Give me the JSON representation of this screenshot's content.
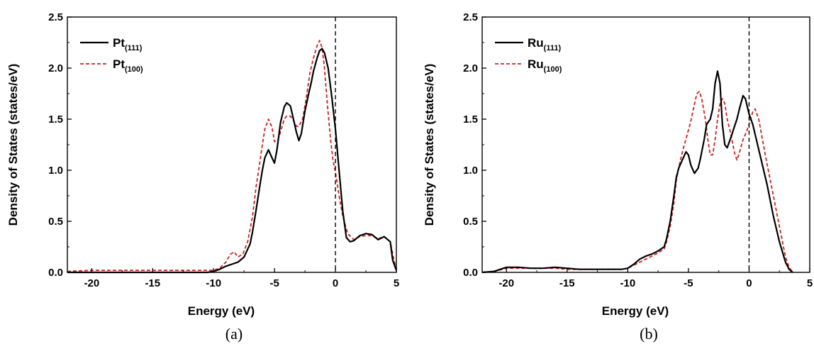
{
  "colors": {
    "series_111": "#000000",
    "series_100": "#cc2222",
    "fermi_line": "#000000"
  },
  "chart_data": [
    {
      "panel_label": "(a)",
      "type": "line",
      "xlabel": "Energy (eV)",
      "ylabel": "Density of States (states/eV)",
      "xlim": [
        -22,
        5
      ],
      "ylim": [
        0,
        2.5
      ],
      "xticks": [
        "-20",
        "-15",
        "-10",
        "-5",
        "0",
        "5"
      ],
      "yticks": [
        "0.0",
        "0.5",
        "1.0",
        "1.5",
        "2.0",
        "2.5"
      ],
      "fermi_level": 0,
      "legend_position": "top-left",
      "series": [
        {
          "name": "Pt",
          "name_sub": "(111)",
          "style": "solid",
          "x": [
            -22,
            -20,
            -15,
            -10.5,
            -10,
            -9.5,
            -9,
            -8.5,
            -8,
            -7.5,
            -7,
            -6.8,
            -6.5,
            -6.2,
            -6,
            -5.8,
            -5.5,
            -5.2,
            -5,
            -4.8,
            -4.5,
            -4.2,
            -4,
            -3.7,
            -3.5,
            -3.2,
            -3,
            -2.8,
            -2.5,
            -2.2,
            -2,
            -1.8,
            -1.5,
            -1.3,
            -1.1,
            -0.9,
            -0.6,
            -0.3,
            0,
            0.3,
            0.6,
            0.9,
            1.2,
            1.5,
            2,
            2.5,
            3,
            3.5,
            4,
            4.5,
            4.7,
            5
          ],
          "values": [
            0.0,
            0.0,
            0.0,
            0.0,
            0.01,
            0.03,
            0.06,
            0.08,
            0.1,
            0.15,
            0.28,
            0.4,
            0.62,
            0.85,
            1.0,
            1.12,
            1.2,
            1.12,
            1.07,
            1.2,
            1.47,
            1.62,
            1.66,
            1.63,
            1.53,
            1.37,
            1.29,
            1.36,
            1.58,
            1.75,
            1.85,
            1.97,
            2.1,
            2.17,
            2.19,
            2.15,
            2.0,
            1.72,
            1.4,
            1.0,
            0.6,
            0.34,
            0.3,
            0.31,
            0.36,
            0.38,
            0.37,
            0.32,
            0.35,
            0.3,
            0.12,
            0.02
          ]
        },
        {
          "name": "Pt",
          "name_sub": "(100)",
          "style": "dashed",
          "x": [
            -22,
            -20,
            -15,
            -10,
            -9.5,
            -9,
            -8.6,
            -8.3,
            -8,
            -7.6,
            -7.2,
            -6.8,
            -6.5,
            -6.2,
            -6,
            -5.8,
            -5.5,
            -5.2,
            -5,
            -4.7,
            -4.4,
            -4.2,
            -4,
            -3.7,
            -3.5,
            -3.2,
            -3,
            -2.7,
            -2.4,
            -2.1,
            -1.8,
            -1.5,
            -1.3,
            -1.1,
            -0.9,
            -0.7,
            -0.4,
            -0.2,
            0,
            0.3,
            0.6,
            1,
            1.5,
            2,
            2.5,
            3,
            3.5,
            4,
            4.5,
            4.8,
            5
          ],
          "values": [
            0.01,
            0.02,
            0.02,
            0.02,
            0.04,
            0.1,
            0.18,
            0.2,
            0.15,
            0.18,
            0.3,
            0.55,
            0.85,
            1.08,
            1.25,
            1.4,
            1.5,
            1.42,
            1.28,
            1.3,
            1.42,
            1.5,
            1.53,
            1.53,
            1.5,
            1.43,
            1.43,
            1.5,
            1.7,
            1.95,
            2.1,
            2.22,
            2.27,
            2.2,
            2.0,
            1.7,
            1.3,
            1.1,
            0.98,
            0.75,
            0.55,
            0.38,
            0.32,
            0.35,
            0.36,
            0.36,
            0.33,
            0.35,
            0.3,
            0.12,
            0.03
          ]
        }
      ]
    },
    {
      "panel_label": "(b)",
      "type": "line",
      "xlabel": "Energy (eV)",
      "ylabel": "Density of States (states/eV)",
      "xlim": [
        -22,
        5
      ],
      "ylim": [
        0,
        2.5
      ],
      "xticks": [
        "-20",
        "-15",
        "-10",
        "-5",
        "0",
        "5"
      ],
      "yticks": [
        "0.0",
        "0.5",
        "1.0",
        "1.5",
        "2.0",
        "2.5"
      ],
      "fermi_level": 0,
      "legend_position": "top-left",
      "series": [
        {
          "name": "Ru",
          "name_sub": "(111)",
          "style": "solid",
          "x": [
            -22,
            -21,
            -20,
            -19,
            -18,
            -17,
            -16,
            -15,
            -14,
            -13,
            -12,
            -11,
            -10.5,
            -10,
            -9.5,
            -9,
            -8.5,
            -8,
            -7.5,
            -7,
            -6.8,
            -6.5,
            -6.2,
            -6,
            -5.8,
            -5.5,
            -5.2,
            -5,
            -4.8,
            -4.5,
            -4.2,
            -4,
            -3.7,
            -3.5,
            -3.2,
            -3,
            -2.8,
            -2.6,
            -2.4,
            -2.2,
            -2,
            -1.8,
            -1.5,
            -1.2,
            -1,
            -0.8,
            -0.5,
            -0.3,
            0,
            0.3,
            0.6,
            1,
            1.5,
            2,
            2.5,
            3,
            3.3,
            3.6
          ],
          "values": [
            0.0,
            0.01,
            0.05,
            0.05,
            0.04,
            0.04,
            0.05,
            0.04,
            0.03,
            0.03,
            0.03,
            0.03,
            0.03,
            0.04,
            0.08,
            0.13,
            0.16,
            0.18,
            0.21,
            0.25,
            0.33,
            0.5,
            0.75,
            0.93,
            1.02,
            1.1,
            1.18,
            1.15,
            1.05,
            0.97,
            1.02,
            1.12,
            1.3,
            1.45,
            1.5,
            1.6,
            1.85,
            1.97,
            1.85,
            1.45,
            1.25,
            1.22,
            1.32,
            1.43,
            1.5,
            1.6,
            1.73,
            1.7,
            1.55,
            1.45,
            1.3,
            1.1,
            0.85,
            0.55,
            0.3,
            0.1,
            0.03,
            0.0
          ]
        },
        {
          "name": "Ru",
          "name_sub": "(100)",
          "style": "dashed",
          "x": [
            -22,
            -21,
            -20,
            -19,
            -18,
            -17,
            -16,
            -15,
            -14,
            -13,
            -12,
            -11,
            -10.5,
            -10,
            -9.5,
            -9,
            -8.5,
            -8,
            -7.5,
            -7,
            -6.8,
            -6.5,
            -6.2,
            -6,
            -5.7,
            -5.4,
            -5.1,
            -4.8,
            -4.5,
            -4.3,
            -4.1,
            -3.9,
            -3.6,
            -3.4,
            -3.2,
            -3,
            -2.8,
            -2.6,
            -2.4,
            -2.2,
            -2,
            -1.8,
            -1.5,
            -1.2,
            -1,
            -0.8,
            -0.5,
            -0.2,
            0,
            0.3,
            0.5,
            0.8,
            1.1,
            1.5,
            2,
            2.5,
            3,
            3.3,
            3.6
          ],
          "values": [
            0.0,
            0.01,
            0.04,
            0.04,
            0.04,
            0.04,
            0.04,
            0.03,
            0.03,
            0.03,
            0.03,
            0.03,
            0.03,
            0.04,
            0.07,
            0.1,
            0.13,
            0.16,
            0.19,
            0.23,
            0.3,
            0.45,
            0.68,
            0.9,
            1.08,
            1.22,
            1.35,
            1.48,
            1.65,
            1.75,
            1.77,
            1.7,
            1.5,
            1.3,
            1.15,
            1.15,
            1.3,
            1.5,
            1.65,
            1.7,
            1.65,
            1.5,
            1.35,
            1.17,
            1.1,
            1.17,
            1.3,
            1.38,
            1.45,
            1.57,
            1.6,
            1.5,
            1.3,
            1.05,
            0.75,
            0.45,
            0.15,
            0.05,
            0.0
          ]
        }
      ]
    }
  ]
}
